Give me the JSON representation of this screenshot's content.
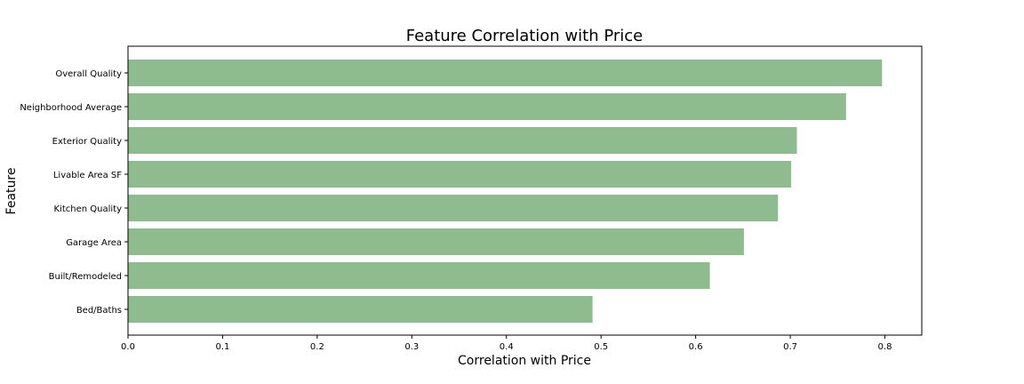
{
  "chart_data": {
    "type": "bar",
    "orientation": "horizontal",
    "title": "Feature Correlation with Price",
    "xlabel": "Correlation with Price",
    "ylabel": "Feature",
    "categories": [
      "Overall Quality",
      "Neighborhood Average",
      "Exterior Quality",
      "Livable Area SF",
      "Kitchen Quality",
      "Garage Area",
      "Built/Remodeled",
      "Bed/Baths"
    ],
    "values": [
      0.797,
      0.759,
      0.707,
      0.701,
      0.687,
      0.651,
      0.615,
      0.491
    ],
    "xlim": [
      0,
      0.839
    ],
    "xticks": [
      "0.0",
      "0.1",
      "0.2",
      "0.3",
      "0.4",
      "0.5",
      "0.6",
      "0.7",
      "0.8"
    ],
    "grid": false,
    "legend": "none",
    "bar_color": "#8fbc8f"
  }
}
